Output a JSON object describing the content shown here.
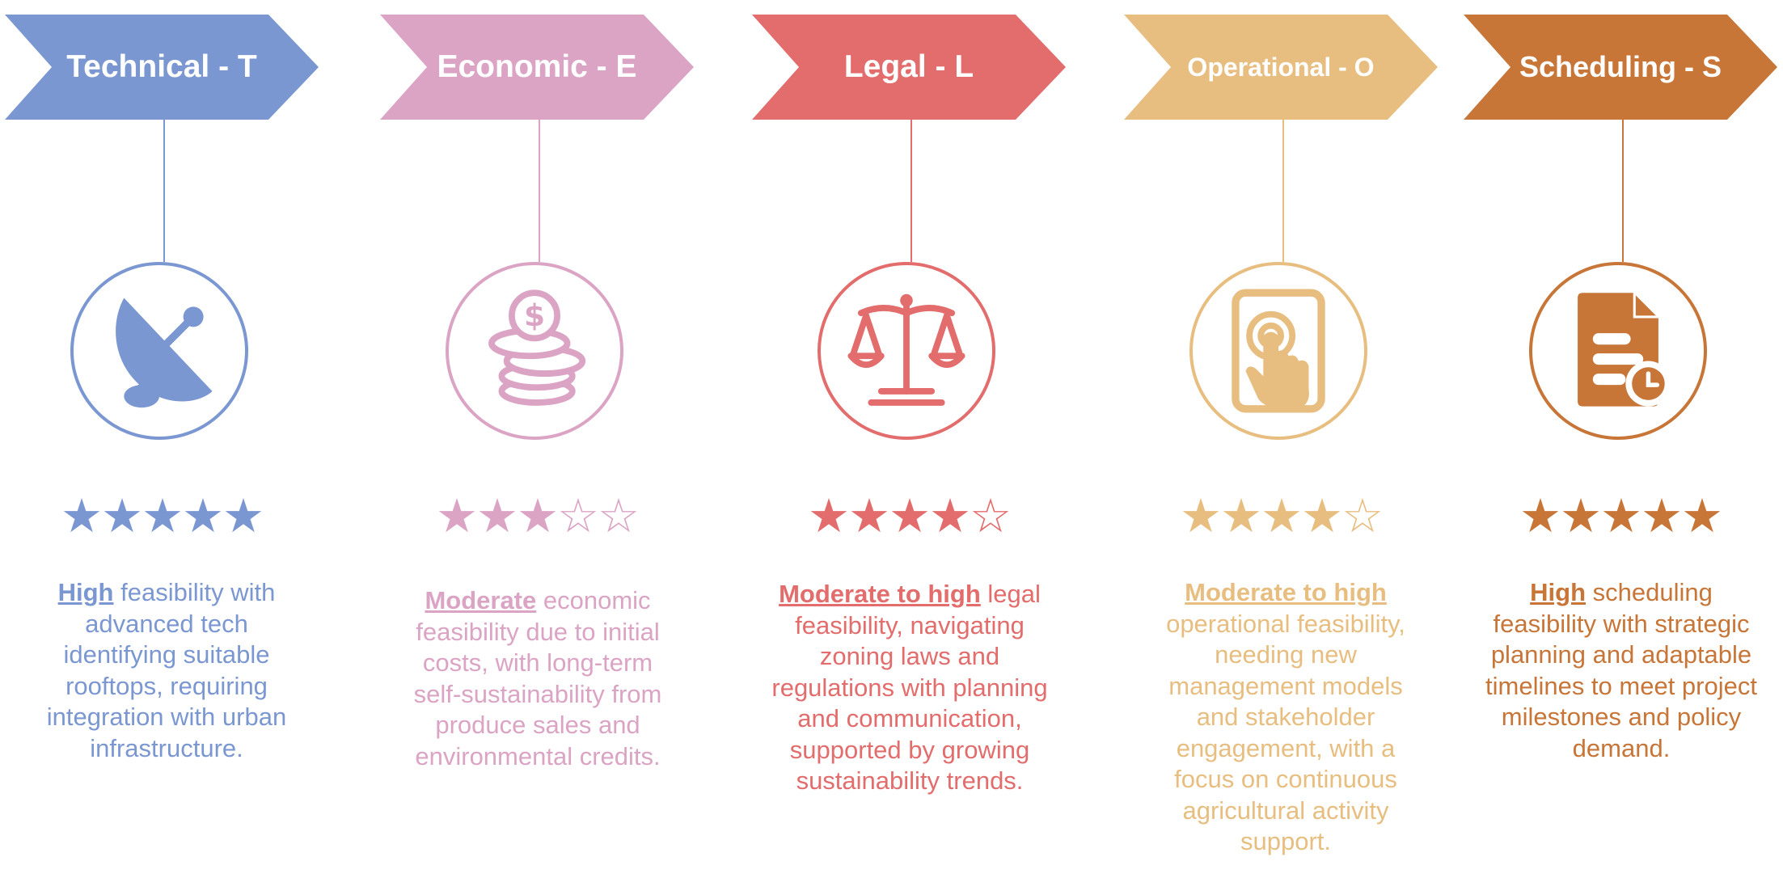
{
  "columns": [
    {
      "id": "technical",
      "title": "Technical - T",
      "color": "#7b97d2",
      "icon": "satellite-dish-icon",
      "rating": 5,
      "rating_max": 5,
      "highlight": "High",
      "text": " feasibility with advanced tech identifying suitable rooftops, requiring integration with urban infrastructure."
    },
    {
      "id": "economic",
      "title": "Economic - E",
      "color": "#dba4c4",
      "icon": "coins-dollar-icon",
      "rating": 3,
      "rating_max": 5,
      "highlight": "Moderate",
      "text": " economic feasibility due to initial costs, with long-term self-sustainability from produce sales and environmental credits."
    },
    {
      "id": "legal",
      "title": "Legal - L",
      "color": "#e36c6c",
      "icon": "balance-scale-icon",
      "rating": 4,
      "rating_max": 5,
      "highlight": "Moderate to high",
      "text": " legal feasibility, navigating zoning laws and regulations with planning and communication, supported by growing sustainability trends."
    },
    {
      "id": "operational",
      "title": "Operational - O",
      "color": "#e8be80",
      "icon": "tablet-touch-icon",
      "rating": 4,
      "rating_max": 5,
      "highlight": "Moderate to high",
      "text": " operational feasibility, needing new management models and stakeholder engagement, with a focus on continuous agricultural activity support."
    },
    {
      "id": "scheduling",
      "title": "Scheduling - S",
      "color": "#c87538",
      "icon": "document-clock-icon",
      "rating": 5,
      "rating_max": 5,
      "highlight": "High",
      "text": " scheduling feasibility with strategic planning and adaptable timelines to meet project milestones and policy demand."
    }
  ]
}
